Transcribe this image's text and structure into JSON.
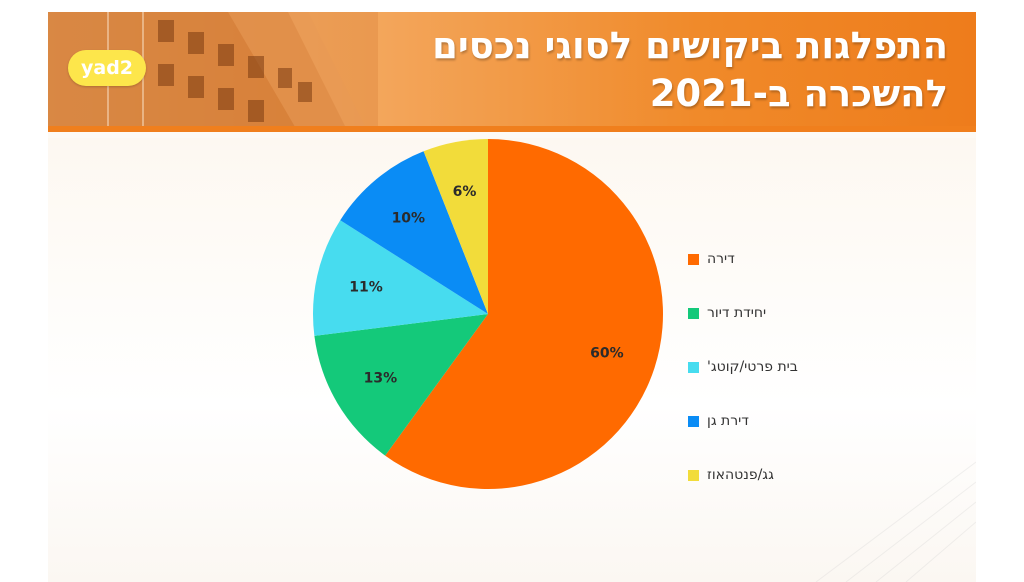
{
  "header": {
    "logo_text": "yad2",
    "title_line1": "התפלגות ביקושים לסוגי נכסים",
    "title_line2": "להשכרה ב-2021"
  },
  "colors": {
    "header_orange": "#f08a2a",
    "logo_yellow": "#fde64b"
  },
  "chart_data": {
    "type": "pie",
    "title": "התפלגות ביקושים לסוגי נכסים להשכרה ב-2021",
    "legend_position": "right",
    "slices": [
      {
        "label": "דירה",
        "value": 60,
        "display": "60%",
        "color": "#ff6a00"
      },
      {
        "label": "יחידת דיור",
        "value": 13,
        "display": "13%",
        "color": "#14c97a"
      },
      {
        "label": "בית פרטי/קוטג'",
        "value": 11,
        "display": "11%",
        "color": "#47dcef"
      },
      {
        "label": "דירת גן",
        "value": 10,
        "display": "10%",
        "color": "#0a8cf5"
      },
      {
        "label": "גג/פנטהאוז",
        "value": 6,
        "display": "6%",
        "color": "#f2dc3a"
      }
    ]
  }
}
